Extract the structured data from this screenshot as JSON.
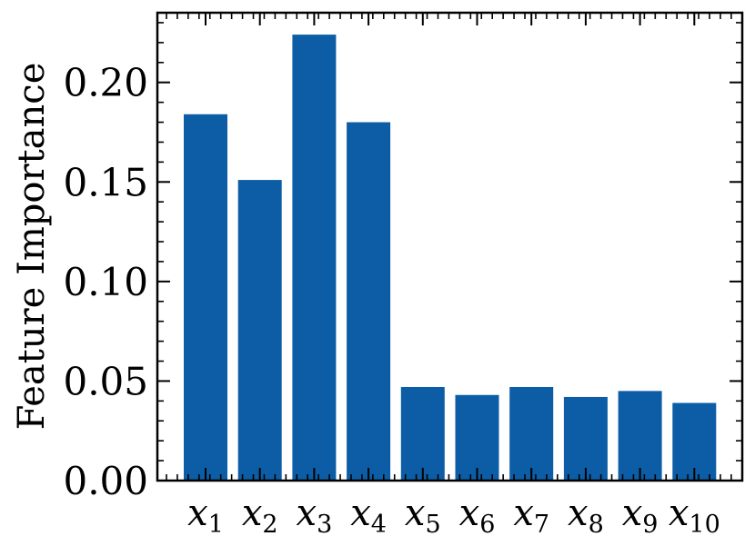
{
  "chart_data": {
    "type": "bar",
    "categories": [
      {
        "base": "x",
        "sub": "1"
      },
      {
        "base": "x",
        "sub": "2"
      },
      {
        "base": "x",
        "sub": "3"
      },
      {
        "base": "x",
        "sub": "4"
      },
      {
        "base": "x",
        "sub": "5"
      },
      {
        "base": "x",
        "sub": "6"
      },
      {
        "base": "x",
        "sub": "7"
      },
      {
        "base": "x",
        "sub": "8"
      },
      {
        "base": "x",
        "sub": "9"
      },
      {
        "base": "x",
        "sub": "10"
      }
    ],
    "values": [
      0.184,
      0.151,
      0.224,
      0.18,
      0.047,
      0.043,
      0.047,
      0.042,
      0.045,
      0.039
    ],
    "title": "",
    "xlabel": "",
    "ylabel": "Feature Importance",
    "ylim": [
      0,
      0.235
    ],
    "yticks": [
      "0.00",
      "0.05",
      "0.10",
      "0.15",
      "0.20"
    ],
    "ytick_values": [
      0,
      0.05,
      0.1,
      0.15,
      0.2
    ],
    "bar_color": "#0c5da5",
    "grid": false
  }
}
